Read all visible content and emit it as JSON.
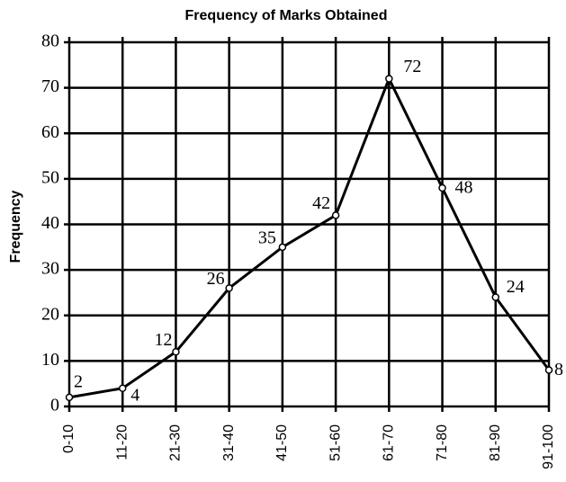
{
  "chart_data": {
    "type": "line",
    "title": "Frequency of Marks Obtained",
    "y_label": "Frequency",
    "categories": [
      "0-10",
      "11-20",
      "21-30",
      "31-40",
      "41-50",
      "51-60",
      "61-70",
      "71-80",
      "81-90",
      "91-100"
    ],
    "values": [
      2,
      4,
      12,
      26,
      35,
      42,
      72,
      48,
      24,
      8
    ],
    "color": "#000000",
    "ylim": [
      0,
      80
    ],
    "yticks": [
      0,
      10,
      20,
      30,
      40,
      50,
      60,
      70,
      80
    ],
    "grid": true
  }
}
